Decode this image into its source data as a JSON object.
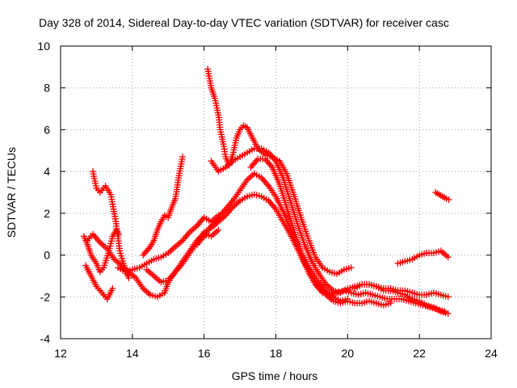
{
  "chart_data": {
    "type": "scatter",
    "title": "Day 328 of 2014, Sidereal Day-to-day VTEC variation (SDTVAR) for receiver casc",
    "xlabel": "GPS time / hours",
    "ylabel": "SDTVAR / TECUs",
    "xlim": [
      12,
      24
    ],
    "ylim": [
      -4,
      10
    ],
    "xticks": [
      12,
      14,
      16,
      18,
      20,
      22,
      24
    ],
    "yticks": [
      -4,
      -2,
      0,
      2,
      4,
      6,
      8,
      10
    ],
    "grid": true,
    "marker": "+",
    "color": "#ff0000",
    "series": [
      {
        "name": "s1",
        "points": [
          [
            12.65,
            0.9
          ],
          [
            12.75,
            0.5
          ],
          [
            12.85,
            0.0
          ],
          [
            13.0,
            -0.4
          ],
          [
            13.1,
            -0.8
          ],
          [
            13.2,
            -0.6
          ],
          [
            13.35,
            0.2
          ],
          [
            13.45,
            0.9
          ],
          [
            13.55,
            1.2
          ],
          [
            13.62,
            1.0
          ]
        ]
      },
      {
        "name": "s2",
        "points": [
          [
            12.9,
            4.0
          ],
          [
            13.0,
            3.2
          ],
          [
            13.1,
            3.0
          ],
          [
            13.25,
            3.3
          ],
          [
            13.4,
            2.9
          ],
          [
            13.55,
            1.5
          ],
          [
            13.65,
            0.2
          ],
          [
            13.75,
            -0.4
          ],
          [
            13.85,
            -0.9
          ],
          [
            13.9,
            -1.1
          ]
        ]
      },
      {
        "name": "s3",
        "points": [
          [
            12.7,
            -0.5
          ],
          [
            12.85,
            -1.0
          ],
          [
            13.0,
            -1.5
          ],
          [
            13.15,
            -1.8
          ],
          [
            13.3,
            -2.1
          ],
          [
            13.45,
            -1.6
          ]
        ]
      },
      {
        "name": "s4",
        "points": [
          [
            12.75,
            0.7
          ],
          [
            12.9,
            1.0
          ],
          [
            13.1,
            0.6
          ],
          [
            13.3,
            0.3
          ],
          [
            13.5,
            -0.2
          ],
          [
            13.7,
            -0.5
          ],
          [
            13.9,
            -0.8
          ],
          [
            14.1,
            -1.1
          ],
          [
            14.3,
            -1.6
          ],
          [
            14.5,
            -1.9
          ],
          [
            14.7,
            -2.0
          ],
          [
            14.9,
            -1.8
          ],
          [
            15.0,
            -1.3
          ],
          [
            15.2,
            -0.8
          ],
          [
            15.4,
            -0.3
          ],
          [
            15.6,
            0.2
          ],
          [
            15.8,
            0.7
          ],
          [
            16.0,
            1.0
          ],
          [
            16.2,
            0.9
          ],
          [
            16.4,
            1.2
          ]
        ]
      },
      {
        "name": "s5",
        "points": [
          [
            13.6,
            -0.6
          ],
          [
            13.8,
            -0.8
          ],
          [
            14.0,
            -0.7
          ],
          [
            14.2,
            -0.6
          ],
          [
            14.4,
            -0.4
          ],
          [
            14.6,
            -0.2
          ],
          [
            14.8,
            -0.1
          ],
          [
            15.0,
            0.1
          ],
          [
            15.2,
            0.4
          ],
          [
            15.4,
            0.7
          ],
          [
            15.6,
            1.1
          ],
          [
            15.8,
            1.4
          ],
          [
            16.0,
            1.8
          ],
          [
            16.2,
            1.6
          ],
          [
            16.4,
            1.9
          ]
        ]
      },
      {
        "name": "s6",
        "points": [
          [
            14.3,
            0.0
          ],
          [
            14.5,
            0.4
          ],
          [
            14.6,
            0.7
          ],
          [
            14.7,
            1.2
          ],
          [
            14.8,
            1.6
          ],
          [
            14.9,
            1.9
          ],
          [
            15.0,
            1.8
          ],
          [
            15.1,
            2.3
          ],
          [
            15.2,
            2.7
          ],
          [
            15.3,
            3.8
          ],
          [
            15.4,
            4.7
          ]
        ]
      },
      {
        "name": "s7",
        "points": [
          [
            14.4,
            -0.7
          ],
          [
            14.6,
            -1.0
          ],
          [
            14.8,
            -1.3
          ],
          [
            15.0,
            -1.2
          ],
          [
            15.2,
            -0.8
          ],
          [
            15.4,
            -0.4
          ],
          [
            15.6,
            0.1
          ],
          [
            15.8,
            0.6
          ],
          [
            16.0,
            1.1
          ],
          [
            16.2,
            1.3
          ],
          [
            16.4,
            1.6
          ],
          [
            16.6,
            1.9
          ],
          [
            16.8,
            2.3
          ],
          [
            17.0,
            2.6
          ],
          [
            17.2,
            2.8
          ],
          [
            17.4,
            2.9
          ],
          [
            17.6,
            2.8
          ],
          [
            17.8,
            2.6
          ],
          [
            18.0,
            2.2
          ],
          [
            18.2,
            1.6
          ],
          [
            18.4,
            1.0
          ],
          [
            18.6,
            0.3
          ],
          [
            18.8,
            -0.4
          ],
          [
            19.0,
            -1.0
          ],
          [
            19.2,
            -1.5
          ],
          [
            19.4,
            -1.9
          ],
          [
            19.6,
            -2.2
          ],
          [
            19.8,
            -2.3
          ],
          [
            20.0,
            -2.2
          ],
          [
            20.2,
            -2.3
          ],
          [
            20.4,
            -2.3
          ],
          [
            20.6,
            -2.2
          ],
          [
            20.8,
            -2.3
          ],
          [
            21.0,
            -2.4
          ],
          [
            21.2,
            -2.3
          ]
        ]
      },
      {
        "name": "s8",
        "points": [
          [
            15.8,
            0.5
          ],
          [
            16.0,
            0.9
          ],
          [
            16.2,
            1.4
          ],
          [
            16.4,
            1.8
          ],
          [
            16.6,
            2.2
          ],
          [
            16.8,
            2.6
          ],
          [
            17.0,
            3.1
          ],
          [
            17.2,
            3.6
          ],
          [
            17.4,
            3.9
          ],
          [
            17.6,
            3.7
          ],
          [
            17.8,
            3.3
          ],
          [
            18.0,
            2.8
          ],
          [
            18.2,
            2.1
          ],
          [
            18.4,
            1.3
          ],
          [
            18.6,
            0.5
          ],
          [
            18.8,
            -0.2
          ],
          [
            19.0,
            -0.8
          ],
          [
            19.2,
            -1.3
          ],
          [
            19.4,
            -1.7
          ],
          [
            19.6,
            -2.0
          ],
          [
            19.8,
            -2.2
          ],
          [
            20.0,
            -2.1
          ]
        ]
      },
      {
        "name": "s9",
        "points": [
          [
            16.1,
            8.9
          ],
          [
            16.2,
            8.0
          ],
          [
            16.3,
            7.5
          ],
          [
            16.4,
            6.7
          ],
          [
            16.45,
            6.0
          ],
          [
            16.55,
            5.2
          ],
          [
            16.6,
            4.7
          ],
          [
            16.7,
            4.3
          ],
          [
            16.8,
            4.8
          ],
          [
            16.9,
            5.6
          ],
          [
            17.0,
            6.0
          ],
          [
            17.1,
            6.2
          ],
          [
            17.2,
            6.1
          ],
          [
            17.35,
            5.6
          ],
          [
            17.5,
            5.1
          ],
          [
            17.7,
            4.8
          ],
          [
            17.9,
            4.7
          ],
          [
            18.1,
            4.5
          ],
          [
            18.3,
            3.9
          ],
          [
            18.5,
            2.9
          ],
          [
            18.7,
            1.8
          ],
          [
            18.9,
            0.8
          ],
          [
            19.1,
            -0.1
          ],
          [
            19.3,
            -0.6
          ],
          [
            19.5,
            -0.8
          ],
          [
            19.7,
            -0.9
          ],
          [
            19.9,
            -0.7
          ],
          [
            20.1,
            -0.6
          ]
        ]
      },
      {
        "name": "s10",
        "points": [
          [
            16.2,
            4.5
          ],
          [
            16.4,
            4.0
          ],
          [
            16.6,
            4.2
          ],
          [
            16.8,
            4.5
          ],
          [
            17.0,
            4.7
          ],
          [
            17.2,
            4.9
          ],
          [
            17.4,
            5.1
          ],
          [
            17.6,
            5.1
          ],
          [
            17.8,
            4.9
          ],
          [
            18.0,
            4.5
          ],
          [
            18.2,
            3.7
          ],
          [
            18.4,
            2.6
          ],
          [
            18.6,
            1.5
          ],
          [
            18.8,
            0.5
          ],
          [
            19.0,
            -0.3
          ],
          [
            19.2,
            -0.9
          ],
          [
            19.4,
            -1.4
          ],
          [
            19.6,
            -1.7
          ],
          [
            19.8,
            -1.8
          ],
          [
            20.0,
            -1.6
          ],
          [
            20.2,
            -1.5
          ],
          [
            20.4,
            -1.4
          ],
          [
            20.6,
            -1.4
          ],
          [
            20.8,
            -1.5
          ],
          [
            21.0,
            -1.6
          ],
          [
            21.2,
            -1.6
          ],
          [
            21.4,
            -1.7
          ],
          [
            21.6,
            -1.7
          ],
          [
            21.8,
            -1.8
          ],
          [
            22.0,
            -1.9
          ],
          [
            22.2,
            -1.9
          ],
          [
            22.4,
            -1.8
          ],
          [
            22.6,
            -1.9
          ],
          [
            22.8,
            -2.0
          ]
        ]
      },
      {
        "name": "s11",
        "points": [
          [
            17.3,
            4.2
          ],
          [
            17.5,
            4.6
          ],
          [
            17.7,
            4.6
          ],
          [
            17.9,
            4.2
          ],
          [
            18.1,
            3.4
          ],
          [
            18.3,
            2.3
          ],
          [
            18.5,
            1.2
          ],
          [
            18.7,
            0.1
          ],
          [
            18.9,
            -0.8
          ],
          [
            19.1,
            -1.4
          ],
          [
            19.3,
            -1.8
          ],
          [
            19.5,
            -1.9
          ],
          [
            19.7,
            -1.8
          ],
          [
            19.9,
            -1.7
          ],
          [
            20.1,
            -1.8
          ],
          [
            20.3,
            -1.9
          ],
          [
            20.5,
            -1.8
          ],
          [
            20.7,
            -1.9
          ],
          [
            20.9,
            -2.0
          ],
          [
            21.1,
            -2.1
          ],
          [
            21.3,
            -2.1
          ],
          [
            21.5,
            -2.1
          ],
          [
            21.7,
            -2.2
          ],
          [
            21.9,
            -2.3
          ],
          [
            22.1,
            -2.4
          ],
          [
            22.3,
            -2.5
          ],
          [
            22.5,
            -2.6
          ],
          [
            22.7,
            -2.7
          ]
        ]
      },
      {
        "name": "s12",
        "points": [
          [
            20.2,
            -1.6
          ],
          [
            20.4,
            -1.4
          ],
          [
            20.6,
            -1.4
          ],
          [
            20.8,
            -1.5
          ],
          [
            21.0,
            -1.7
          ],
          [
            21.2,
            -1.7
          ],
          [
            21.4,
            -1.8
          ],
          [
            21.6,
            -1.9
          ],
          [
            21.8,
            -2.1
          ],
          [
            22.0,
            -2.2
          ],
          [
            22.2,
            -2.4
          ],
          [
            22.4,
            -2.5
          ],
          [
            22.6,
            -2.7
          ],
          [
            22.8,
            -2.8
          ]
        ]
      },
      {
        "name": "s13",
        "points": [
          [
            21.4,
            -0.4
          ],
          [
            21.6,
            -0.3
          ],
          [
            21.8,
            -0.2
          ],
          [
            22.0,
            0.0
          ],
          [
            22.2,
            0.1
          ],
          [
            22.4,
            0.1
          ],
          [
            22.6,
            0.2
          ],
          [
            22.8,
            -0.1
          ]
        ]
      },
      {
        "name": "s14",
        "points": [
          [
            22.45,
            3.0
          ],
          [
            22.55,
            2.9
          ],
          [
            22.65,
            2.8
          ],
          [
            22.75,
            2.7
          ],
          [
            22.82,
            2.65
          ]
        ]
      }
    ]
  }
}
